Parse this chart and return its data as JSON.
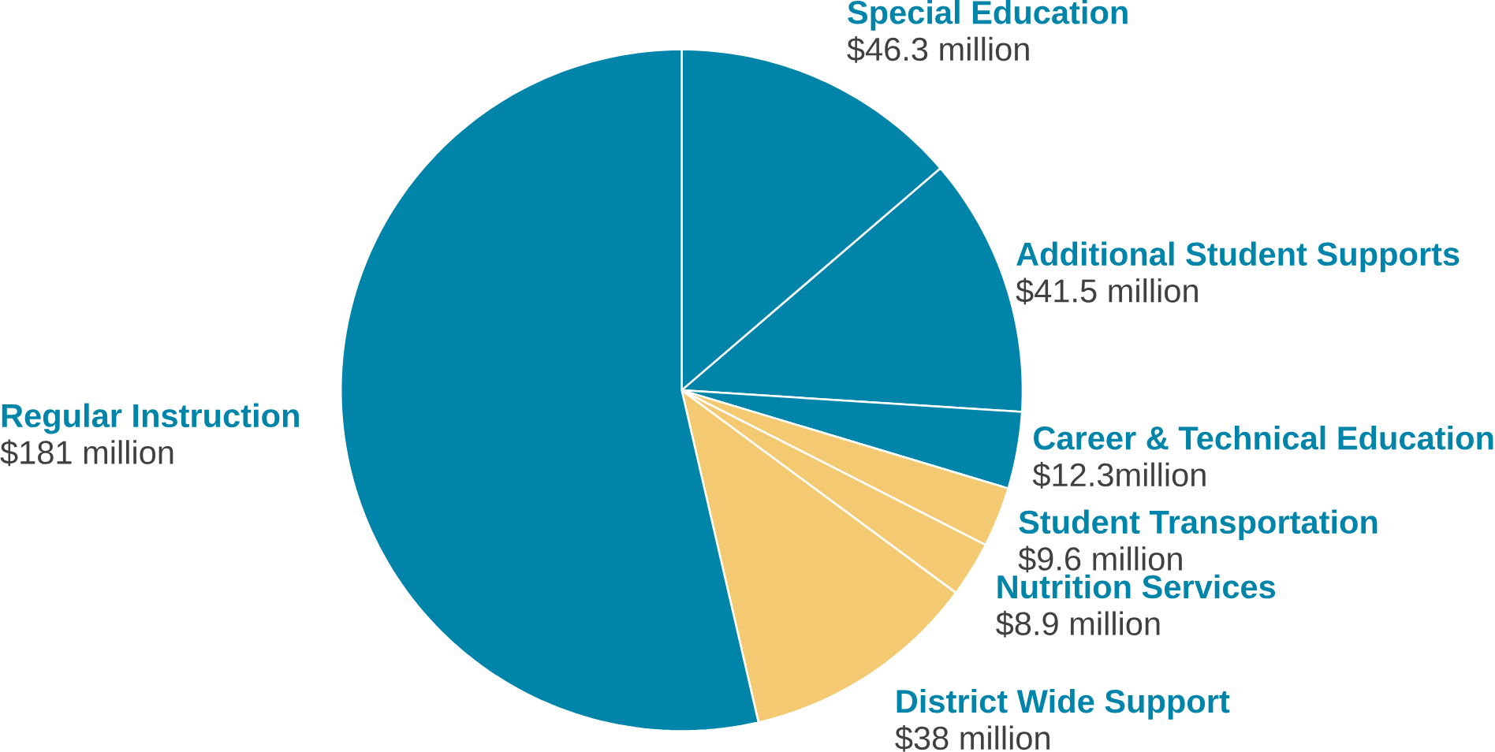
{
  "chart_data": {
    "type": "pie",
    "categories": [
      "Special Education",
      "Additional Student Supports",
      "Career & Technical Education",
      "Student Transportation",
      "Nutrition Services",
      "District Wide Support",
      "Regular Instruction"
    ],
    "values": [
      46.3,
      41.5,
      12.3,
      9.6,
      8.9,
      38,
      181
    ],
    "value_labels": [
      "$46.3 million",
      "$41.5 million",
      "$12.3million",
      "$9.6 million",
      "$8.9 million",
      "$38 million",
      "$181 million"
    ],
    "colors": [
      "#0084a9",
      "#0084a9",
      "#0084a9",
      "#f3ca72",
      "#f3ca72",
      "#f3ca72",
      "#0084a9"
    ]
  }
}
